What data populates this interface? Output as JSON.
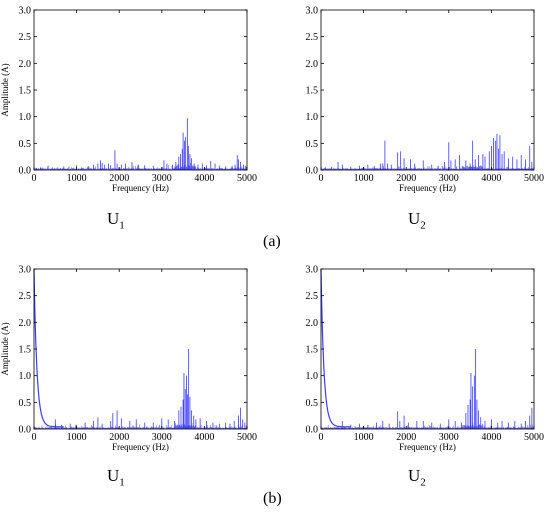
{
  "panel_labels": {
    "a": "(a)",
    "b": "(b)"
  },
  "subplot_captions": [
    {
      "main": "U",
      "sub": "1"
    },
    {
      "main": "U",
      "sub": "2"
    },
    {
      "main": "U",
      "sub": "1"
    },
    {
      "main": "U",
      "sub": "2"
    }
  ],
  "series_color": "#3b3bff",
  "chart_data": [
    {
      "type": "line",
      "id": "a-U1",
      "xlabel": "Frequency (Hz)",
      "ylabel": "Amplitude (A)",
      "xlim": [
        0,
        5000
      ],
      "ylim": [
        0,
        3.0
      ],
      "xticks": [
        0,
        1000,
        2000,
        3000,
        4000,
        5000
      ],
      "yticks": [
        "0.0",
        "0.5",
        "1.0",
        "1.5",
        "2.0",
        "2.5",
        "3.0"
      ],
      "low_freq_decay": false,
      "peaks": [
        [
          60,
          0.04
        ],
        [
          150,
          0.05
        ],
        [
          330,
          0.08
        ],
        [
          560,
          0.05
        ],
        [
          700,
          0.07
        ],
        [
          820,
          0.06
        ],
        [
          1000,
          0.09
        ],
        [
          1120,
          0.05
        ],
        [
          1270,
          0.07
        ],
        [
          1400,
          0.1
        ],
        [
          1500,
          0.12
        ],
        [
          1560,
          0.18
        ],
        [
          1600,
          0.13
        ],
        [
          1660,
          0.1
        ],
        [
          1750,
          0.12
        ],
        [
          1800,
          0.09
        ],
        [
          1900,
          0.37
        ],
        [
          1950,
          0.12
        ],
        [
          2050,
          0.1
        ],
        [
          2150,
          0.12
        ],
        [
          2300,
          0.15
        ],
        [
          2450,
          0.1
        ],
        [
          2600,
          0.09
        ],
        [
          2800,
          0.08
        ],
        [
          3050,
          0.18
        ],
        [
          3120,
          0.12
        ],
        [
          3250,
          0.1
        ],
        [
          3330,
          0.15
        ],
        [
          3400,
          0.25
        ],
        [
          3440,
          0.3
        ],
        [
          3480,
          0.4
        ],
        [
          3500,
          0.7
        ],
        [
          3530,
          0.55
        ],
        [
          3560,
          0.62
        ],
        [
          3600,
          0.97
        ],
        [
          3630,
          0.45
        ],
        [
          3660,
          0.3
        ],
        [
          3700,
          0.22
        ],
        [
          3760,
          0.12
        ],
        [
          3850,
          0.1
        ],
        [
          3950,
          0.12
        ],
        [
          4050,
          0.09
        ],
        [
          4150,
          0.17
        ],
        [
          4250,
          0.12
        ],
        [
          4350,
          0.08
        ],
        [
          4500,
          0.07
        ],
        [
          4650,
          0.08
        ],
        [
          4720,
          0.1
        ],
        [
          4770,
          0.28
        ],
        [
          4800,
          0.2
        ],
        [
          4850,
          0.15
        ],
        [
          4920,
          0.1
        ],
        [
          4970,
          0.08
        ]
      ]
    },
    {
      "type": "line",
      "id": "a-U2",
      "xlabel": "Frequency (Hz)",
      "ylabel": "",
      "xlim": [
        0,
        5000
      ],
      "ylim": [
        0,
        3.0
      ],
      "xticks": [
        0,
        1000,
        2000,
        3000,
        4000,
        5000
      ],
      "yticks": [
        "0.0",
        "0.5",
        "1.0",
        "1.5",
        "2.0",
        "2.5",
        "3.0"
      ],
      "low_freq_decay": false,
      "peaks": [
        [
          100,
          0.05
        ],
        [
          250,
          0.06
        ],
        [
          400,
          0.15
        ],
        [
          500,
          0.1
        ],
        [
          700,
          0.06
        ],
        [
          900,
          0.08
        ],
        [
          1100,
          0.1
        ],
        [
          1250,
          0.08
        ],
        [
          1400,
          0.12
        ],
        [
          1450,
          0.12
        ],
        [
          1500,
          0.55
        ],
        [
          1560,
          0.12
        ],
        [
          1650,
          0.1
        ],
        [
          1800,
          0.33
        ],
        [
          1870,
          0.35
        ],
        [
          1950,
          0.22
        ],
        [
          2100,
          0.2
        ],
        [
          2200,
          0.12
        ],
        [
          2400,
          0.18
        ],
        [
          2600,
          0.1
        ],
        [
          2750,
          0.08
        ],
        [
          2900,
          0.15
        ],
        [
          3000,
          0.52
        ],
        [
          3050,
          0.18
        ],
        [
          3150,
          0.2
        ],
        [
          3250,
          0.28
        ],
        [
          3400,
          0.18
        ],
        [
          3500,
          0.12
        ],
        [
          3560,
          0.55
        ],
        [
          3620,
          0.2
        ],
        [
          3700,
          0.28
        ],
        [
          3800,
          0.3
        ],
        [
          3850,
          0.25
        ],
        [
          3950,
          0.35
        ],
        [
          4000,
          0.45
        ],
        [
          4050,
          0.6
        ],
        [
          4100,
          0.55
        ],
        [
          4130,
          0.68
        ],
        [
          4170,
          0.4
        ],
        [
          4200,
          0.65
        ],
        [
          4250,
          0.3
        ],
        [
          4300,
          0.35
        ],
        [
          4400,
          0.22
        ],
        [
          4500,
          0.25
        ],
        [
          4600,
          0.2
        ],
        [
          4700,
          0.28
        ],
        [
          4800,
          0.2
        ],
        [
          4900,
          0.45
        ],
        [
          4950,
          0.15
        ]
      ]
    },
    {
      "type": "line",
      "id": "b-U1",
      "xlabel": "Frequency (Hz)",
      "ylabel": "Amplitude (A)",
      "xlim": [
        0,
        5000
      ],
      "ylim": [
        0,
        3.0
      ],
      "xticks": [
        0,
        1000,
        2000,
        3000,
        4000,
        5000
      ],
      "yticks": [
        "0.0",
        "0.5",
        "1.0",
        "1.5",
        "2.0",
        "2.5",
        "3.0"
      ],
      "low_freq_decay": true,
      "peaks": [
        [
          500,
          0.18
        ],
        [
          650,
          0.08
        ],
        [
          850,
          0.1
        ],
        [
          1000,
          0.08
        ],
        [
          1200,
          0.12
        ],
        [
          1400,
          0.15
        ],
        [
          1500,
          0.22
        ],
        [
          1600,
          0.1
        ],
        [
          1800,
          0.15
        ],
        [
          1850,
          0.3
        ],
        [
          1950,
          0.35
        ],
        [
          2050,
          0.2
        ],
        [
          2250,
          0.15
        ],
        [
          2400,
          0.18
        ],
        [
          2600,
          0.12
        ],
        [
          2800,
          0.12
        ],
        [
          3000,
          0.2
        ],
        [
          3150,
          0.18
        ],
        [
          3300,
          0.15
        ],
        [
          3400,
          0.35
        ],
        [
          3450,
          0.42
        ],
        [
          3500,
          0.55
        ],
        [
          3520,
          1.05
        ],
        [
          3550,
          0.75
        ],
        [
          3580,
          1.0
        ],
        [
          3600,
          0.65
        ],
        [
          3630,
          1.5
        ],
        [
          3660,
          0.6
        ],
        [
          3700,
          0.35
        ],
        [
          3750,
          0.25
        ],
        [
          3800,
          0.18
        ],
        [
          3900,
          0.2
        ],
        [
          4050,
          0.15
        ],
        [
          4200,
          0.12
        ],
        [
          4350,
          0.1
        ],
        [
          4500,
          0.12
        ],
        [
          4600,
          0.1
        ],
        [
          4700,
          0.15
        ],
        [
          4800,
          0.25
        ],
        [
          4850,
          0.4
        ],
        [
          4900,
          0.18
        ],
        [
          4950,
          0.12
        ]
      ]
    },
    {
      "type": "line",
      "id": "b-U2",
      "xlabel": "Frequency (Hz)",
      "ylabel": "",
      "xlim": [
        0,
        5000
      ],
      "ylim": [
        0,
        3.0
      ],
      "xticks": [
        0,
        1000,
        2000,
        3000,
        4000,
        5000
      ],
      "yticks": [
        "0.0",
        "0.5",
        "1.0",
        "1.5",
        "2.0",
        "2.5",
        "3.0"
      ],
      "low_freq_decay": true,
      "peaks": [
        [
          500,
          0.15
        ],
        [
          700,
          0.08
        ],
        [
          900,
          0.1
        ],
        [
          1100,
          0.08
        ],
        [
          1300,
          0.12
        ],
        [
          1450,
          0.15
        ],
        [
          1600,
          0.1
        ],
        [
          1800,
          0.33
        ],
        [
          1850,
          0.15
        ],
        [
          1950,
          0.25
        ],
        [
          2050,
          0.12
        ],
        [
          2250,
          0.15
        ],
        [
          2400,
          0.15
        ],
        [
          2600,
          0.12
        ],
        [
          2800,
          0.1
        ],
        [
          3000,
          0.18
        ],
        [
          3150,
          0.15
        ],
        [
          3300,
          0.12
        ],
        [
          3400,
          0.3
        ],
        [
          3450,
          0.45
        ],
        [
          3500,
          0.55
        ],
        [
          3520,
          1.05
        ],
        [
          3560,
          0.8
        ],
        [
          3600,
          1.0
        ],
        [
          3630,
          1.5
        ],
        [
          3660,
          0.55
        ],
        [
          3700,
          0.35
        ],
        [
          3750,
          0.22
        ],
        [
          3850,
          0.15
        ],
        [
          4000,
          0.18
        ],
        [
          4150,
          0.12
        ],
        [
          4250,
          0.15
        ],
        [
          4400,
          0.12
        ],
        [
          4550,
          0.15
        ],
        [
          4700,
          0.1
        ],
        [
          4800,
          0.15
        ],
        [
          4900,
          0.25
        ],
        [
          4950,
          0.4
        ]
      ]
    }
  ]
}
